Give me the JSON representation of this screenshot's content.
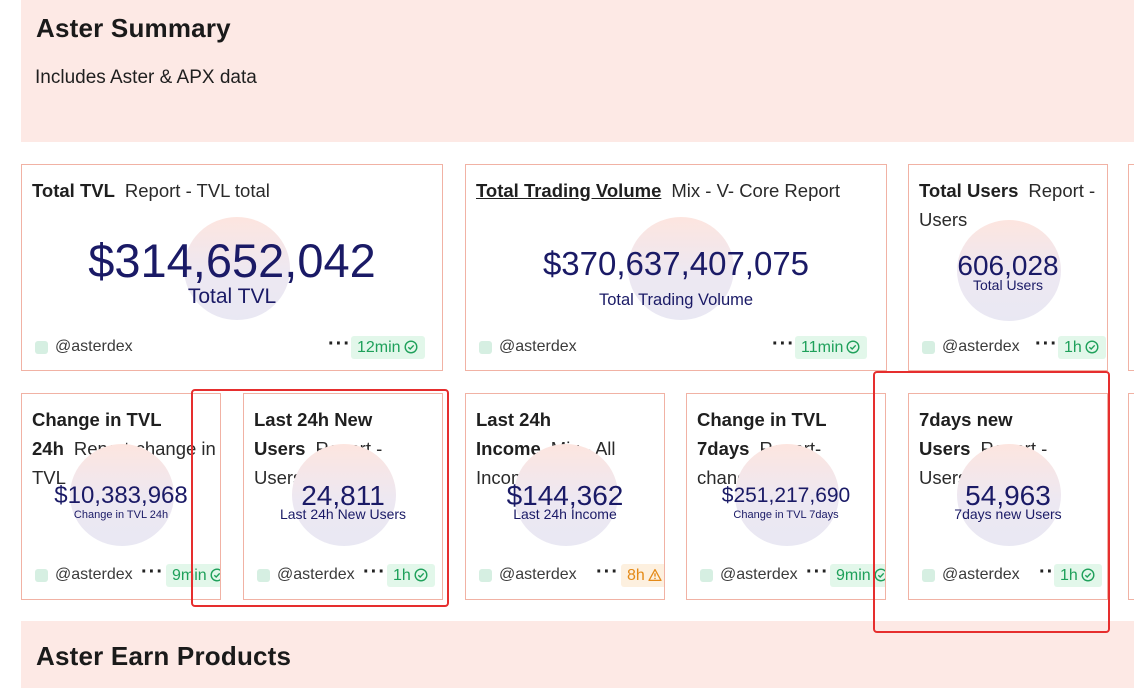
{
  "summary": {
    "title": "Aster Summary",
    "subtitle": "Includes Aster & APX data"
  },
  "earn": {
    "title": "Aster Earn Products"
  },
  "colors": {
    "section_bg": "#fde9e5",
    "card_border": "#f1b2a4",
    "value_color": "#1a1a66",
    "ok_badge": "#1ea05a",
    "warn_badge": "#e48a18",
    "highlight": "#e62e2e"
  },
  "cards": {
    "tvl": {
      "title": "Total TVL",
      "report": "Report - TVL total",
      "value": "$314,652,042",
      "label": "Total TVL",
      "owner": "@asterdex",
      "freshness": "12min",
      "status": "ok"
    },
    "volume": {
      "title": "Total Trading Volume",
      "report": "Mix - V- Core Report",
      "value": "$370,637,407,075",
      "label": "Total Trading Volume",
      "owner": "@asterdex",
      "freshness": "11min",
      "status": "ok"
    },
    "users": {
      "title": "Total Users",
      "report": "Report - Users",
      "value": "606,028",
      "label": "Total Users",
      "owner": "@asterdex",
      "freshness": "1h",
      "status": "ok"
    },
    "tvl_change_24h": {
      "title": "Change in TVL 24h",
      "report": "Report-change in TVL",
      "value": "$10,383,968",
      "label": "Change in TVL 24h",
      "owner": "@asterdex",
      "freshness": "9min",
      "status": "ok"
    },
    "new_users_24h": {
      "title": "Last 24h New Users",
      "report": "Report - Users",
      "value": "24,811",
      "label": "Last 24h New Users",
      "owner": "@asterdex",
      "freshness": "1h",
      "status": "ok"
    },
    "income_24h": {
      "title": "Last 24h Income",
      "report": "Mix - All Income",
      "value": "$144,362",
      "label": "Last 24h Income",
      "owner": "@asterdex",
      "freshness": "8h",
      "status": "warn"
    },
    "tvl_change_7d": {
      "title": "Change in TVL 7days",
      "report": "Report-change in TVL",
      "value": "$251,217,690",
      "label": "Change in TVL 7days",
      "owner": "@asterdex",
      "freshness": "9min",
      "status": "ok"
    },
    "new_users_7d": {
      "title": "7days new Users",
      "report": "Report - Users",
      "value": "54,963",
      "label": "7days new Users",
      "owner": "@asterdex",
      "freshness": "1h",
      "status": "ok"
    }
  },
  "icons": {
    "more": "more-icon",
    "ok": "check-circle-icon",
    "warn": "warning-icon"
  }
}
